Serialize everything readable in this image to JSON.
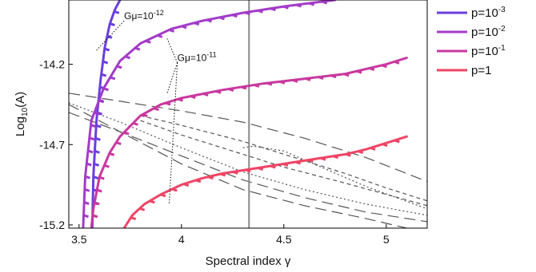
{
  "chart_data": {
    "type": "line",
    "xlabel": "Spectral index γ",
    "ylabel_base": "Log",
    "ylabel_sub": "10",
    "ylabel_tail": "(A)",
    "xlim": [
      3.45,
      5.2
    ],
    "ylim": [
      -15.22,
      -13.8
    ],
    "xticks": [
      3.5,
      4,
      4.5,
      5
    ],
    "xtick_labels": [
      "3.5",
      "4",
      "4.5",
      "5"
    ],
    "yticks": [
      -14.2,
      -14.7,
      -15.2
    ],
    "ytick_labels": [
      "-14.2",
      "-14.7",
      "-15.2"
    ],
    "vertical_line_x": 4.33,
    "legend_placement": "right",
    "series": [
      {
        "name": "p=10",
        "name_sup": "-3",
        "color": "#6a3fe0",
        "x": [
          3.565,
          3.57,
          3.585,
          3.605,
          3.625,
          3.65,
          3.675,
          3.7
        ],
        "y": [
          -15.22,
          -14.9,
          -14.55,
          -14.3,
          -14.1,
          -13.95,
          -13.86,
          -13.8
        ]
      },
      {
        "name": "p=10",
        "name_sup": "-2",
        "color": "#a33bc9",
        "x": [
          3.52,
          3.53,
          3.56,
          3.62,
          3.7,
          3.8,
          3.95,
          4.1,
          4.3,
          4.5,
          4.75
        ],
        "y": [
          -15.22,
          -14.9,
          -14.55,
          -14.35,
          -14.18,
          -14.07,
          -13.98,
          -13.93,
          -13.88,
          -13.84,
          -13.8
        ]
      },
      {
        "name": "p=10",
        "name_sup": "-1",
        "color": "#c9389f",
        "x": [
          3.56,
          3.57,
          3.6,
          3.65,
          3.7,
          3.8,
          3.9,
          4.0,
          4.2,
          4.4,
          4.6,
          4.8,
          5.0,
          5.1
        ],
        "y": [
          -15.22,
          -15.1,
          -14.9,
          -14.75,
          -14.65,
          -14.52,
          -14.45,
          -14.41,
          -14.36,
          -14.32,
          -14.29,
          -14.26,
          -14.2,
          -14.16
        ]
      },
      {
        "name": "p=1",
        "name_sup": "",
        "color": "#ef4565",
        "x": [
          3.72,
          3.76,
          3.82,
          3.9,
          4.0,
          4.1,
          4.2,
          4.3,
          4.4,
          4.5,
          4.6,
          4.7,
          4.8,
          4.9,
          5.0,
          5.1
        ],
        "y": [
          -15.22,
          -15.14,
          -15.07,
          -15.01,
          -14.95,
          -14.91,
          -14.88,
          -14.86,
          -14.84,
          -14.82,
          -14.8,
          -14.78,
          -14.76,
          -14.73,
          -14.69,
          -14.65
        ]
      }
    ],
    "dashed_curves": [
      {
        "style": "longdash",
        "x": [
          3.45,
          3.7,
          4.0,
          4.3,
          4.6,
          4.9,
          5.2
        ],
        "y": [
          -14.38,
          -14.43,
          -14.49,
          -14.56,
          -14.66,
          -14.78,
          -14.93
        ]
      },
      {
        "style": "longdash",
        "x": [
          3.45,
          3.7,
          4.0,
          4.3,
          4.6,
          4.9,
          5.2
        ],
        "y": [
          -14.5,
          -14.62,
          -14.77,
          -14.92,
          -15.03,
          -15.12,
          -15.18
        ]
      },
      {
        "style": "longdash",
        "x": [
          3.45,
          3.7,
          4.0,
          4.3,
          4.6,
          4.9,
          5.1
        ],
        "y": [
          -14.45,
          -14.62,
          -14.82,
          -14.98,
          -15.08,
          -15.16,
          -15.22
        ]
      },
      {
        "style": "shortdash",
        "x": [
          3.8,
          4.0,
          4.3,
          4.5,
          4.8,
          5.0,
          5.2
        ],
        "y": [
          -14.52,
          -14.58,
          -14.68,
          -14.76,
          -14.88,
          -14.97,
          -15.05
        ]
      },
      {
        "style": "shortdash",
        "x": [
          3.8,
          4.0,
          4.3,
          4.5,
          4.8,
          5.0,
          5.2
        ],
        "y": [
          -14.55,
          -14.64,
          -14.76,
          -14.84,
          -14.94,
          -15.01,
          -15.08
        ]
      },
      {
        "style": "dot",
        "x": [
          4.3,
          4.35,
          4.5,
          4.7,
          4.9,
          5.2
        ],
        "y": [
          -14.72,
          -14.71,
          -14.74,
          -14.85,
          -14.96,
          -15.1
        ]
      },
      {
        "style": "dot",
        "x": [
          3.45,
          3.7,
          4.0,
          4.3,
          4.6,
          4.9,
          5.2
        ],
        "y": [
          -14.44,
          -14.56,
          -14.72,
          -14.87,
          -14.98,
          -15.07,
          -15.14
        ]
      }
    ],
    "annotations": [
      {
        "text": "Gμ=10",
        "sup": "-12",
        "x": 3.72,
        "y": -13.92,
        "pointers": [
          [
            3.58,
            -14.12
          ]
        ]
      },
      {
        "text": "Gμ=10",
        "sup": "-11",
        "x": 3.98,
        "y": -14.18,
        "pointers": [
          [
            3.93,
            -14.04
          ],
          [
            3.93,
            -14.38
          ],
          [
            3.94,
            -15.07
          ]
        ]
      }
    ]
  }
}
